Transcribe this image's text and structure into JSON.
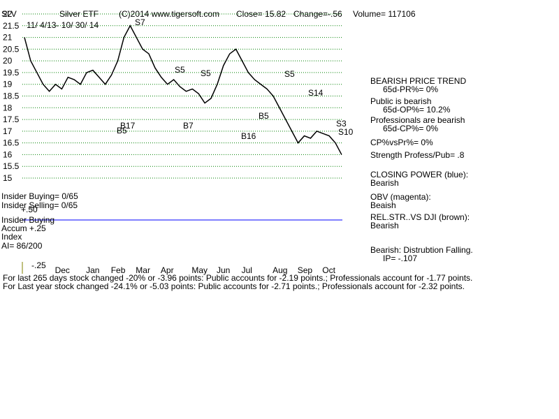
{
  "header": {
    "symbol": "SLV",
    "name": "Silver ETF",
    "copyright": "(C)2014 www.tigersoft.com",
    "close": "Close=  15.82",
    "change": "Change=-.56",
    "volume": "Volume= 117106"
  },
  "chart_data": {
    "type": "line",
    "date_range": "11/ 4/13- 10/ 30/ 14",
    "categories": [
      null,
      null,
      null,
      null,
      "Dec",
      null,
      null,
      null,
      null,
      "Jan",
      null,
      null,
      null,
      "Feb",
      null,
      null,
      null,
      "Mar",
      null,
      null,
      null,
      "Apr",
      null,
      null,
      null,
      null,
      "May",
      null,
      null,
      null,
      "Jun",
      null,
      null,
      null,
      "Jul",
      null,
      null,
      null,
      null,
      "Aug",
      null,
      null,
      null,
      "Sep",
      null,
      null,
      null,
      "Oct",
      null,
      null,
      null,
      null
    ],
    "values": [
      21.0,
      20.0,
      19.5,
      19.0,
      18.7,
      19.0,
      18.8,
      19.3,
      19.2,
      19.0,
      19.5,
      19.6,
      19.3,
      19.0,
      19.4,
      20.0,
      21.0,
      21.5,
      21.0,
      20.5,
      20.3,
      19.7,
      19.3,
      19.0,
      19.2,
      18.9,
      18.7,
      18.8,
      18.6,
      18.2,
      18.4,
      19.0,
      19.8,
      20.3,
      20.5,
      20.0,
      19.5,
      19.2,
      19.0,
      18.8,
      18.5,
      18.0,
      17.5,
      17.0,
      16.5,
      16.8,
      16.7,
      17.0,
      16.9,
      16.8,
      16.5,
      16.0
    ],
    "color": "#000000",
    "ylim": [
      15,
      22
    ],
    "yticks": [
      15,
      15.5,
      16,
      16.5,
      17,
      17.5,
      18,
      18.5,
      19,
      19.5,
      20,
      20.5,
      21,
      21.5,
      22
    ],
    "grid": true,
    "annotations": [
      "S7",
      "S5",
      "S5",
      "S5",
      "S14",
      "B17",
      "B5",
      "B7",
      "B16",
      "B5",
      "S3",
      "S10"
    ]
  },
  "left_panel": [
    "Insider Buying= 0/65",
    "Insider Selling= 0/65",
    "+.50",
    "Insider Buying",
    "Accum  +.25",
    "Index",
    "AI= 86/200",
    "-.25"
  ],
  "right_panel": [
    "BEARISH PRICE TREND",
    "65d-PR%= 0%",
    "Public is bearish",
    "65d-OP%= 10.2%",
    "Professionals are bearish",
    "65d-CP%= 0%",
    "CP%vsPr%=  0%",
    "Strength Profess/Pub= .8",
    "CLOSING POWER (blue):",
    "Bearish",
    "OBV (magenta):",
    "Beaish",
    "REL.STR..VS DJI (brown):",
    "Bearish",
    "Bearish:  Distrubtion Falling.",
    "IP= -.107"
  ],
  "footer": [
    "For last 265 days stock changed -20% or -3.96 points:  Public accounts for -2.19 points.;  Professionals account for -1.77 points.",
    "For Last year stock changed -24.1% or -5.03 points:  Public accounts for -2.71 points.;  Professionals account for -2.32 points."
  ]
}
